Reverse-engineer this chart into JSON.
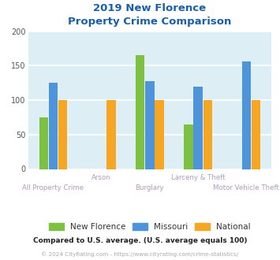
{
  "title_line1": "2019 New Florence",
  "title_line2": "Property Crime Comparison",
  "categories": [
    "All Property Crime",
    "Arson",
    "Burglary",
    "Larceny & Theft",
    "Motor Vehicle Theft"
  ],
  "series": {
    "New Florence": [
      75,
      0,
      165,
      65,
      0
    ],
    "Missouri": [
      125,
      0,
      127,
      120,
      156
    ],
    "National": [
      100,
      100,
      100,
      100,
      100
    ]
  },
  "colors": {
    "New Florence": "#7cc142",
    "Missouri": "#4d94db",
    "National": "#f5a623"
  },
  "ylim": [
    0,
    200
  ],
  "yticks": [
    0,
    50,
    100,
    150,
    200
  ],
  "plot_bg_color": "#ddeef4",
  "title_color": "#1a5fa8",
  "xlabel_color": "#b09ab8",
  "legend_text_color": "#333333",
  "footer_text": "Compared to U.S. average. (U.S. average equals 100)",
  "footer_color": "#222222",
  "copyright_text": "© 2024 CityRating.com - https://www.cityrating.com/crime-statistics/",
  "copyright_color": "#aaaaaa",
  "grid_color": "#ffffff",
  "bar_width": 0.2
}
